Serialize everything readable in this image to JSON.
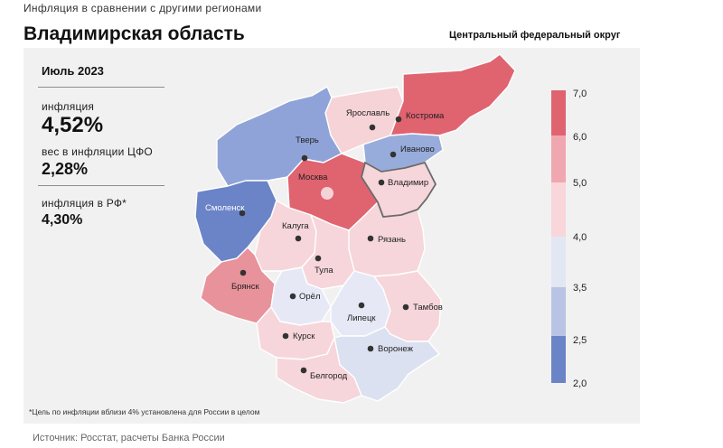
{
  "header": {
    "caption": "Инфляция  в сравнении  с другими  регионами",
    "title": "Владимирская область",
    "subtitle": "Центральный федеральный округ"
  },
  "info": {
    "period": "Июль 2023",
    "inflation_label": "инфляция",
    "inflation_value": "4,52%",
    "weight_label": "вес в инфляции  ЦФО",
    "weight_value": "2,28%",
    "russia_label": "инфляция  в РФ*",
    "russia_value": "4,30%"
  },
  "footnote": "*Цель по инфляции вблизи 4% установлена для России в целом",
  "source": "Источник: Росстат, расчеты Банка России",
  "legend": {
    "ticks": [
      "7,0",
      "6,0",
      "5,0",
      "4,0",
      "3,5",
      "2,5",
      "2,0"
    ],
    "colors": [
      "#e06370",
      "#f1a7af",
      "#f8d6da",
      "#e3e6f3",
      "#b9c4e5",
      "#6b84c8"
    ]
  },
  "regions": [
    {
      "name": "Ярославль",
      "color": "#f6d3d7"
    },
    {
      "name": "Кострома",
      "color": "#e06370"
    },
    {
      "name": "Тверь",
      "color": "#8fa3d8"
    },
    {
      "name": "Иваново",
      "color": "#98acdc"
    },
    {
      "name": "Москва",
      "color": "#e06370"
    },
    {
      "name": "Владимир",
      "color": "#f6d6da"
    },
    {
      "name": "Смоленск",
      "color": "#6b84c8"
    },
    {
      "name": "Калуга",
      "color": "#f6d6da"
    },
    {
      "name": "Рязань",
      "color": "#f6d6da"
    },
    {
      "name": "Тула",
      "color": "#f6d6da"
    },
    {
      "name": "Брянск",
      "color": "#e8929b"
    },
    {
      "name": "Орёл",
      "color": "#e6e9f5"
    },
    {
      "name": "Липецк",
      "color": "#e6e9f5"
    },
    {
      "name": "Тамбов",
      "color": "#f6d6da"
    },
    {
      "name": "Курск",
      "color": "#f6d6da"
    },
    {
      "name": "Воронеж",
      "color": "#dce1f1"
    },
    {
      "name": "Белгород",
      "color": "#f6d6da"
    }
  ]
}
